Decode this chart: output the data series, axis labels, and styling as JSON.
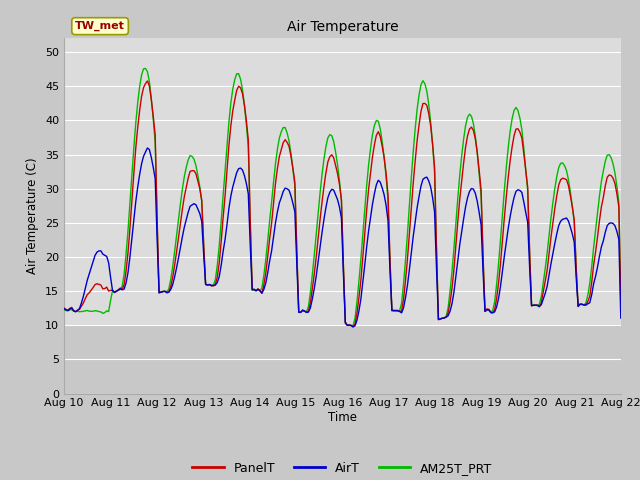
{
  "title": "Air Temperature",
  "ylabel": "Air Temperature (C)",
  "xlabel": "Time",
  "station_label": "TW_met",
  "ylim": [
    0,
    52
  ],
  "yticks": [
    0,
    5,
    10,
    15,
    20,
    25,
    30,
    35,
    40,
    45,
    50
  ],
  "plot_bg_color": "#dcdcdc",
  "plot_upper_bg": "#dcdcdc",
  "plot_lower_bg": "#c8c8c8",
  "grid_color": "#ffffff",
  "fig_bg_color": "#c8c8c8",
  "series": {
    "PanelT": {
      "color": "#cc0000",
      "lw": 1.0
    },
    "AirT": {
      "color": "#0000cc",
      "lw": 1.0
    },
    "AM25T_PRT": {
      "color": "#00bb00",
      "lw": 1.0
    }
  },
  "legend_colors": {
    "PanelT": "#cc0000",
    "AirT": "#0000cc",
    "AM25T_PRT": "#00bb00"
  },
  "x_tick_labels": [
    "Aug 10",
    "Aug 11",
    "Aug 12",
    "Aug 13",
    "Aug 14",
    "Aug 15",
    "Aug 16",
    "Aug 17",
    "Aug 18",
    "Aug 19",
    "Aug 20",
    "Aug 21",
    "Aug 22"
  ],
  "x_tick_positions": [
    0,
    1,
    2,
    3,
    4,
    5,
    6,
    7,
    8,
    9,
    10,
    11,
    12
  ],
  "day_mins": [
    12,
    15,
    15,
    16,
    15,
    12,
    10,
    12,
    11,
    12,
    13,
    13
  ],
  "day_maxes_panel": [
    16,
    46,
    33,
    45,
    37,
    35,
    38,
    43,
    39,
    39,
    32,
    32
  ],
  "day_maxes_air": [
    21,
    36,
    28,
    33,
    30,
    30,
    31,
    32,
    30,
    30,
    26,
    25
  ],
  "day_maxes_am25": [
    12,
    48,
    35,
    47,
    39,
    38,
    40,
    46,
    41,
    42,
    34,
    35
  ]
}
